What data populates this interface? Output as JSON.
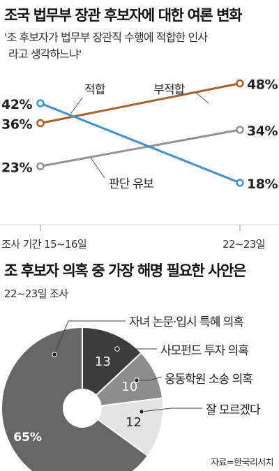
{
  "chart_data": [
    {
      "type": "line",
      "title": "조국 법무부 장관 후보자에 대한 여론 변화",
      "subtitle": [
        "'조 후보자가 법무부 장관직 수행에 적합한 인사",
        "라고 생각하느냐'"
      ],
      "x": [
        "조사 기간 15~16일",
        "22~23일"
      ],
      "series": [
        {
          "name": "적합",
          "values": [
            42,
            18
          ],
          "labels": [
            "42%",
            "18%"
          ],
          "color": "#3f8fd2"
        },
        {
          "name": "부적합",
          "values": [
            36,
            48
          ],
          "labels": [
            "36%",
            "48%"
          ],
          "color": "#a85f2a"
        },
        {
          "name": "판단 유보",
          "values": [
            23,
            34
          ],
          "labels": [
            "23%",
            "34%"
          ],
          "color": "#939393"
        }
      ]
    },
    {
      "type": "pie",
      "title": "조 후보자 의혹 중 가장 해명 필요한 사안은",
      "subtitle": "22~23일 조사",
      "slices": [
        {
          "name": "자녀 논문·입시 특혜 의혹",
          "value": 65,
          "label": "65%",
          "color": "#666666"
        },
        {
          "name": "사모펀드 투자 의혹",
          "value": 13,
          "label": "13",
          "color": "#3c3c3c"
        },
        {
          "name": "웅동학원 소송 의혹",
          "value": 10,
          "label": "10",
          "color": "#8d8d8d"
        },
        {
          "name": "잘 모르겠다",
          "value": 12,
          "label": "12",
          "color": "#e3e3e3"
        }
      ]
    }
  ],
  "source": "자료=한국리서치"
}
